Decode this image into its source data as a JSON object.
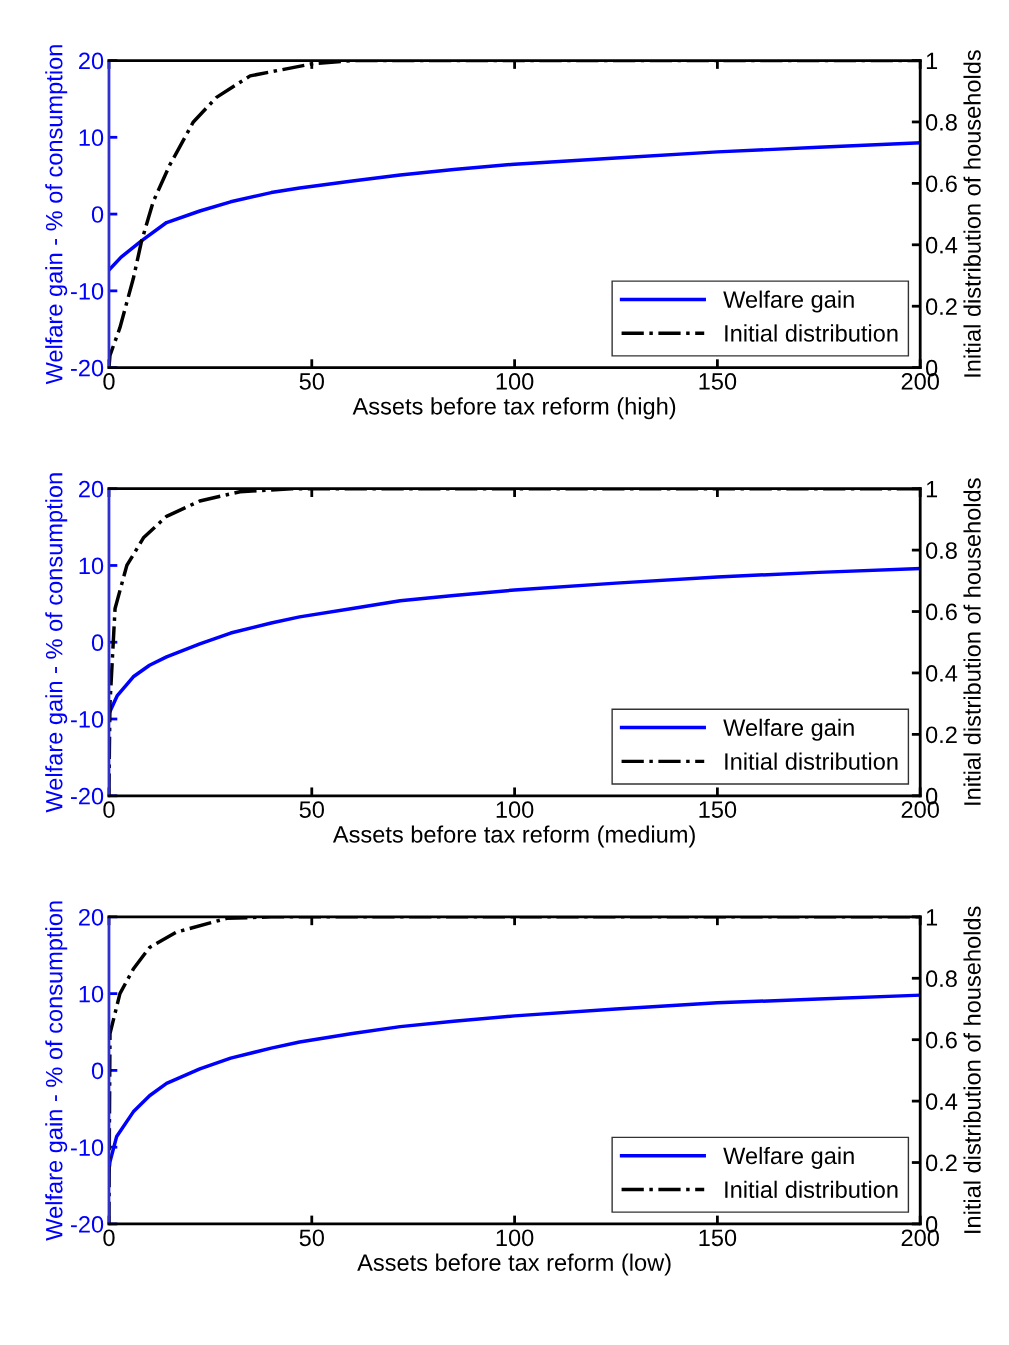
{
  "chart_data": [
    {
      "type": "line",
      "xlabel": "Assets before tax reform (high)",
      "ylabel": "Welfare gain - % of consumption",
      "y2label": "Initial distribution of households",
      "xlim": [
        0,
        200
      ],
      "xticks": [
        0,
        50,
        100,
        150,
        200
      ],
      "ylim": [
        -20,
        20
      ],
      "yticks": [
        -20,
        -10,
        0,
        10,
        20
      ],
      "y2lim": [
        0,
        1
      ],
      "y2ticks": [
        0,
        0.2,
        0.4,
        0.6,
        0.8,
        1
      ],
      "legend": "bottom right",
      "grid": false,
      "series": [
        {
          "name": "Welfare gain",
          "color": "#0000ff",
          "line_style": "solid",
          "x": [
            0,
            3,
            8,
            14.2,
            22.4,
            30,
            40,
            47,
            60,
            71.8,
            85,
            100,
            125,
            150,
            175,
            200
          ],
          "values": [
            -7.3,
            -5.6,
            -3.5,
            -1.1,
            0.4,
            1.6,
            2.8,
            3.4,
            4.3,
            5.1,
            5.8,
            6.5,
            7.3,
            8.1,
            8.7,
            9.3
          ]
        },
        {
          "name": "Initial distribution",
          "color": "#000000",
          "line_style": "dashdot",
          "axis": "y2",
          "x": [
            0,
            0.25,
            2.7,
            6,
            8,
            10.9,
            15,
            20.8,
            26.5,
            34.8,
            50.4,
            60,
            100,
            150,
            200
          ],
          "values": [
            0,
            0.04,
            0.13,
            0.29,
            0.41,
            0.54,
            0.66,
            0.8,
            0.88,
            0.95,
            0.99,
            1,
            1,
            1,
            1
          ]
        }
      ]
    },
    {
      "type": "line",
      "xlabel": "Assets before tax reform (medium)",
      "ylabel": "Welfare gain - % of consumption",
      "y2label": "Initial distribution of households",
      "xlim": [
        0,
        200
      ],
      "xticks": [
        0,
        50,
        100,
        150,
        200
      ],
      "ylim": [
        -20,
        20
      ],
      "yticks": [
        -20,
        -10,
        0,
        10,
        20
      ],
      "y2lim": [
        0,
        1
      ],
      "y2ticks": [
        0,
        0.2,
        0.4,
        0.6,
        0.8,
        1
      ],
      "legend": "bottom right",
      "grid": false,
      "series": [
        {
          "name": "Welfare gain",
          "color": "#0000ff",
          "line_style": "solid",
          "x": [
            0,
            2,
            6,
            10,
            14.2,
            22.4,
            30,
            40,
            47,
            60,
            71.8,
            85,
            100,
            125,
            150,
            175,
            200
          ],
          "values": [
            -9.3,
            -7,
            -4.5,
            -3,
            -1.9,
            -0.2,
            1.2,
            2.5,
            3.3,
            4.4,
            5.4,
            6.1,
            6.8,
            7.7,
            8.5,
            9.1,
            9.6
          ]
        },
        {
          "name": "Initial distribution",
          "color": "#000000",
          "line_style": "dashdot",
          "axis": "y2",
          "x": [
            0,
            0.1,
            0.25,
            1.5,
            4.4,
            8.5,
            14.2,
            22.4,
            32.3,
            45,
            100,
            150,
            200
          ],
          "values": [
            0,
            0.15,
            0.3,
            0.61,
            0.75,
            0.84,
            0.91,
            0.96,
            0.99,
            1,
            1,
            1,
            1
          ]
        }
      ]
    },
    {
      "type": "line",
      "xlabel": "Assets before tax reform (low)",
      "ylabel": "Welfare gain - % of consumption",
      "y2label": "Initial distribution of households",
      "xlim": [
        0,
        200
      ],
      "xticks": [
        0,
        50,
        100,
        150,
        200
      ],
      "ylim": [
        -20,
        20
      ],
      "yticks": [
        -20,
        -10,
        0,
        10,
        20
      ],
      "y2lim": [
        0,
        1
      ],
      "y2ticks": [
        0,
        0.2,
        0.4,
        0.6,
        0.8,
        1
      ],
      "legend": "bottom right",
      "grid": false,
      "series": [
        {
          "name": "Welfare gain",
          "color": "#0000ff",
          "line_style": "solid",
          "x": [
            0,
            0.25,
            1.9,
            6,
            10,
            14.2,
            22.4,
            30,
            40,
            47,
            60,
            71.8,
            85,
            100,
            125,
            150,
            175,
            200
          ],
          "values": [
            -13,
            -11.9,
            -8.6,
            -5.4,
            -3.3,
            -1.7,
            0.2,
            1.6,
            2.9,
            3.7,
            4.8,
            5.7,
            6.4,
            7.1,
            8,
            8.8,
            9.3,
            9.8
          ]
        },
        {
          "name": "Initial distribution",
          "color": "#000000",
          "line_style": "dashdot",
          "axis": "y2",
          "x": [
            0,
            0.1,
            0.25,
            2.7,
            6,
            10,
            16.6,
            29,
            40,
            100,
            150,
            200
          ],
          "values": [
            0,
            0.3,
            0.62,
            0.75,
            0.83,
            0.9,
            0.95,
            0.995,
            1,
            1,
            1,
            1
          ]
        }
      ]
    }
  ]
}
